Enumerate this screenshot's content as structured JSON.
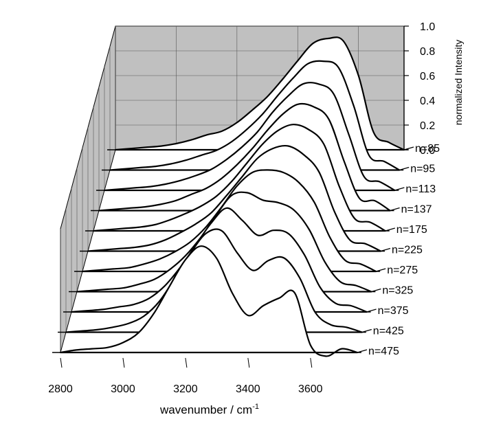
{
  "chart_data": {
    "type": "line",
    "style": "3d-waterfall",
    "xlabel": "wavenumber / cm",
    "xlabel_sup": "-1",
    "zlabel": "normalized Intensity",
    "x_ticks": [
      2800,
      3000,
      3200,
      3400,
      3600
    ],
    "z_ticks": [
      "0.0",
      "0.2",
      "0.4",
      "0.6",
      "0.8",
      "1.0"
    ],
    "xlim": [
      2800,
      3750
    ],
    "zlim": [
      0,
      1.0
    ],
    "x": [
      2800,
      2850,
      2900,
      2950,
      3000,
      3050,
      3100,
      3150,
      3200,
      3250,
      3300,
      3350,
      3400,
      3450,
      3500,
      3550,
      3600,
      3650,
      3700,
      3750
    ],
    "back_panel_color": "#c0c0c0",
    "side_panel_color": "#c0c0c0",
    "series": [
      {
        "name": "n=85",
        "values": [
          0.0,
          0.01,
          0.02,
          0.03,
          0.05,
          0.08,
          0.12,
          0.15,
          0.22,
          0.32,
          0.43,
          0.57,
          0.72,
          0.86,
          0.9,
          0.88,
          0.6,
          0.14,
          0.06,
          0.0
        ]
      },
      {
        "name": "n=95",
        "values": [
          0.0,
          0.01,
          0.02,
          0.03,
          0.05,
          0.08,
          0.12,
          0.16,
          0.23,
          0.33,
          0.45,
          0.6,
          0.74,
          0.86,
          0.88,
          0.83,
          0.52,
          0.12,
          0.07,
          0.0
        ]
      },
      {
        "name": "n=113",
        "values": [
          0.0,
          0.01,
          0.02,
          0.03,
          0.05,
          0.08,
          0.12,
          0.17,
          0.25,
          0.35,
          0.47,
          0.63,
          0.76,
          0.86,
          0.86,
          0.78,
          0.45,
          0.11,
          0.07,
          0.0
        ]
      },
      {
        "name": "n=137",
        "values": [
          0.0,
          0.01,
          0.02,
          0.03,
          0.05,
          0.08,
          0.13,
          0.18,
          0.26,
          0.37,
          0.5,
          0.65,
          0.78,
          0.86,
          0.84,
          0.74,
          0.4,
          0.1,
          0.08,
          0.0
        ]
      },
      {
        "name": "n=175",
        "values": [
          0.0,
          0.01,
          0.02,
          0.03,
          0.05,
          0.09,
          0.14,
          0.2,
          0.28,
          0.4,
          0.55,
          0.7,
          0.81,
          0.86,
          0.82,
          0.7,
          0.36,
          0.1,
          0.07,
          0.0
        ]
      },
      {
        "name": "n=225",
        "values": [
          0.0,
          0.01,
          0.02,
          0.03,
          0.05,
          0.09,
          0.15,
          0.22,
          0.31,
          0.45,
          0.6,
          0.75,
          0.83,
          0.85,
          0.78,
          0.64,
          0.32,
          0.09,
          0.06,
          0.0
        ]
      },
      {
        "name": "n=275",
        "values": [
          0.0,
          0.01,
          0.02,
          0.03,
          0.06,
          0.1,
          0.16,
          0.24,
          0.36,
          0.52,
          0.69,
          0.8,
          0.82,
          0.8,
          0.72,
          0.56,
          0.28,
          0.09,
          0.06,
          0.0
        ]
      },
      {
        "name": "n=325",
        "values": [
          0.0,
          0.01,
          0.02,
          0.03,
          0.06,
          0.1,
          0.18,
          0.29,
          0.44,
          0.62,
          0.78,
          0.8,
          0.74,
          0.72,
          0.66,
          0.5,
          0.24,
          0.08,
          0.05,
          0.0
        ]
      },
      {
        "name": "n=375",
        "values": [
          0.0,
          0.01,
          0.02,
          0.04,
          0.06,
          0.11,
          0.21,
          0.36,
          0.54,
          0.72,
          0.84,
          0.74,
          0.62,
          0.66,
          0.63,
          0.46,
          0.2,
          0.07,
          0.05,
          0.0
        ]
      },
      {
        "name": "n=425",
        "values": [
          0.0,
          0.01,
          0.02,
          0.04,
          0.07,
          0.13,
          0.25,
          0.44,
          0.64,
          0.8,
          0.82,
          0.64,
          0.5,
          0.58,
          0.6,
          0.44,
          0.16,
          0.06,
          0.04,
          0.0
        ]
      },
      {
        "name": "n=475",
        "values": [
          0.0,
          0.02,
          0.03,
          0.04,
          0.08,
          0.16,
          0.32,
          0.54,
          0.75,
          0.86,
          0.76,
          0.48,
          0.3,
          0.38,
          0.44,
          0.48,
          0.06,
          -0.03,
          0.03,
          0.0
        ]
      }
    ]
  }
}
